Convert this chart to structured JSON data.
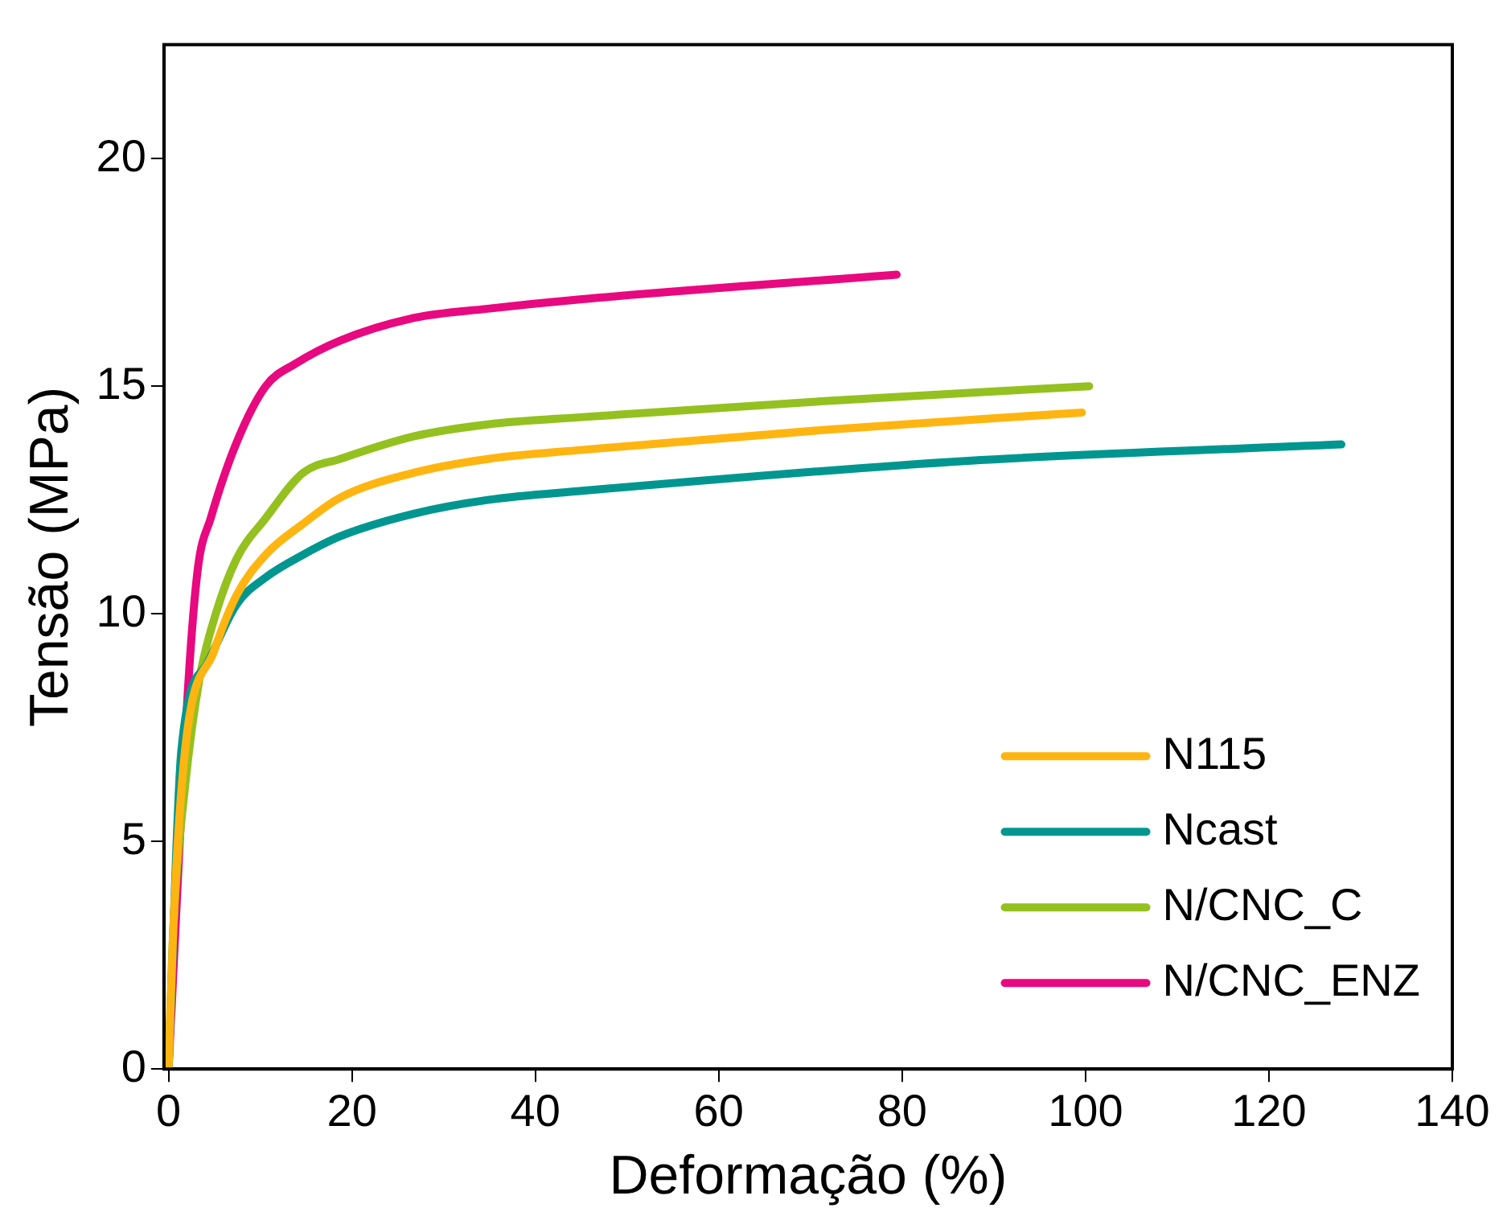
{
  "chart_data": {
    "type": "line",
    "xlabel": "Deformação (%)",
    "ylabel": "Tensão (MPa)",
    "xlim": [
      -0.5,
      140
    ],
    "ylim": [
      0,
      22.5
    ],
    "xticks": [
      0,
      20,
      40,
      60,
      80,
      100,
      120,
      140
    ],
    "yticks": [
      0,
      5,
      10,
      15,
      20
    ],
    "grid": false,
    "legend": "bottom right",
    "marker": "none",
    "line_style": "solid",
    "series": [
      {
        "name": "N115",
        "color": "#ffb511",
        "x": [
          0,
          0.5,
          1.8,
          5,
          7.4,
          10.6,
          14.7,
          18.7,
          26.8,
          34.8,
          45.1,
          72.2,
          99.6
        ],
        "values": [
          0,
          3,
          7,
          9.2,
          10.4,
          11.3,
          11.98,
          12.55,
          13.1,
          13.4,
          13.6,
          14.05,
          14.42
        ]
      },
      {
        "name": "Ncast",
        "color": "#009690",
        "x": [
          0,
          1.4,
          4.2,
          7.4,
          10.6,
          14.7,
          18.7,
          26.8,
          34.8,
          45.1,
          87.2,
          127.9
        ],
        "values": [
          0,
          7,
          8.9,
          10.2,
          10.8,
          11.3,
          11.7,
          12.2,
          12.5,
          12.7,
          13.36,
          13.72
        ]
      },
      {
        "name": "N/CNC_C",
        "color": "#94c11f",
        "x": [
          0,
          0.5,
          1.8,
          3.4,
          5,
          7.4,
          10.6,
          14.7,
          18.7,
          26.8,
          34.8,
          45.1,
          72.2,
          100.4
        ],
        "values": [
          0,
          3,
          6.2,
          8.6,
          9.9,
          11.2,
          12.1,
          13.1,
          13.4,
          13.9,
          14.16,
          14.32,
          14.68,
          15.0
        ]
      },
      {
        "name": "N/CNC_ENZ",
        "color": "#e8087f",
        "x": [
          0,
          2.2,
          3.2,
          4.6,
          7.4,
          10.6,
          13.9,
          18.7,
          26.8,
          34.8,
          45.1,
          79.4
        ],
        "values": [
          0,
          8.6,
          11,
          12.1,
          13.75,
          15.0,
          15.5,
          16.0,
          16.5,
          16.7,
          16.91,
          17.45
        ]
      }
    ]
  }
}
